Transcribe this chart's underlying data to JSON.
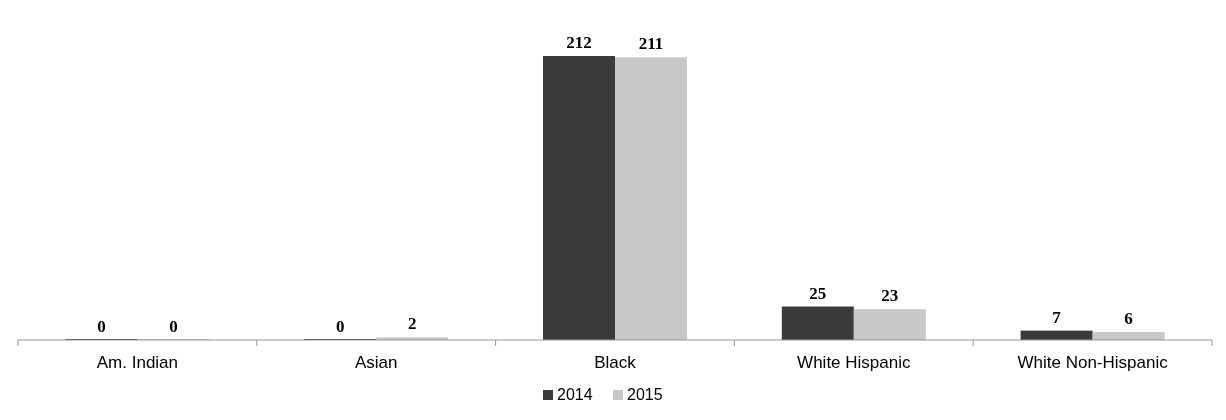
{
  "chart_data": {
    "type": "bar",
    "categories": [
      "Am. Indian",
      "Asian",
      "Black",
      "White Hispanic",
      "White Non-Hispanic"
    ],
    "series": [
      {
        "name": "2014",
        "color": "#3a3a3a",
        "values": [
          0,
          0,
          212,
          25,
          7
        ]
      },
      {
        "name": "2015",
        "color": "#c8c8c8",
        "values": [
          0,
          2,
          211,
          23,
          6
        ]
      }
    ],
    "data_labels": true,
    "legend": "bottom",
    "grid": false
  }
}
